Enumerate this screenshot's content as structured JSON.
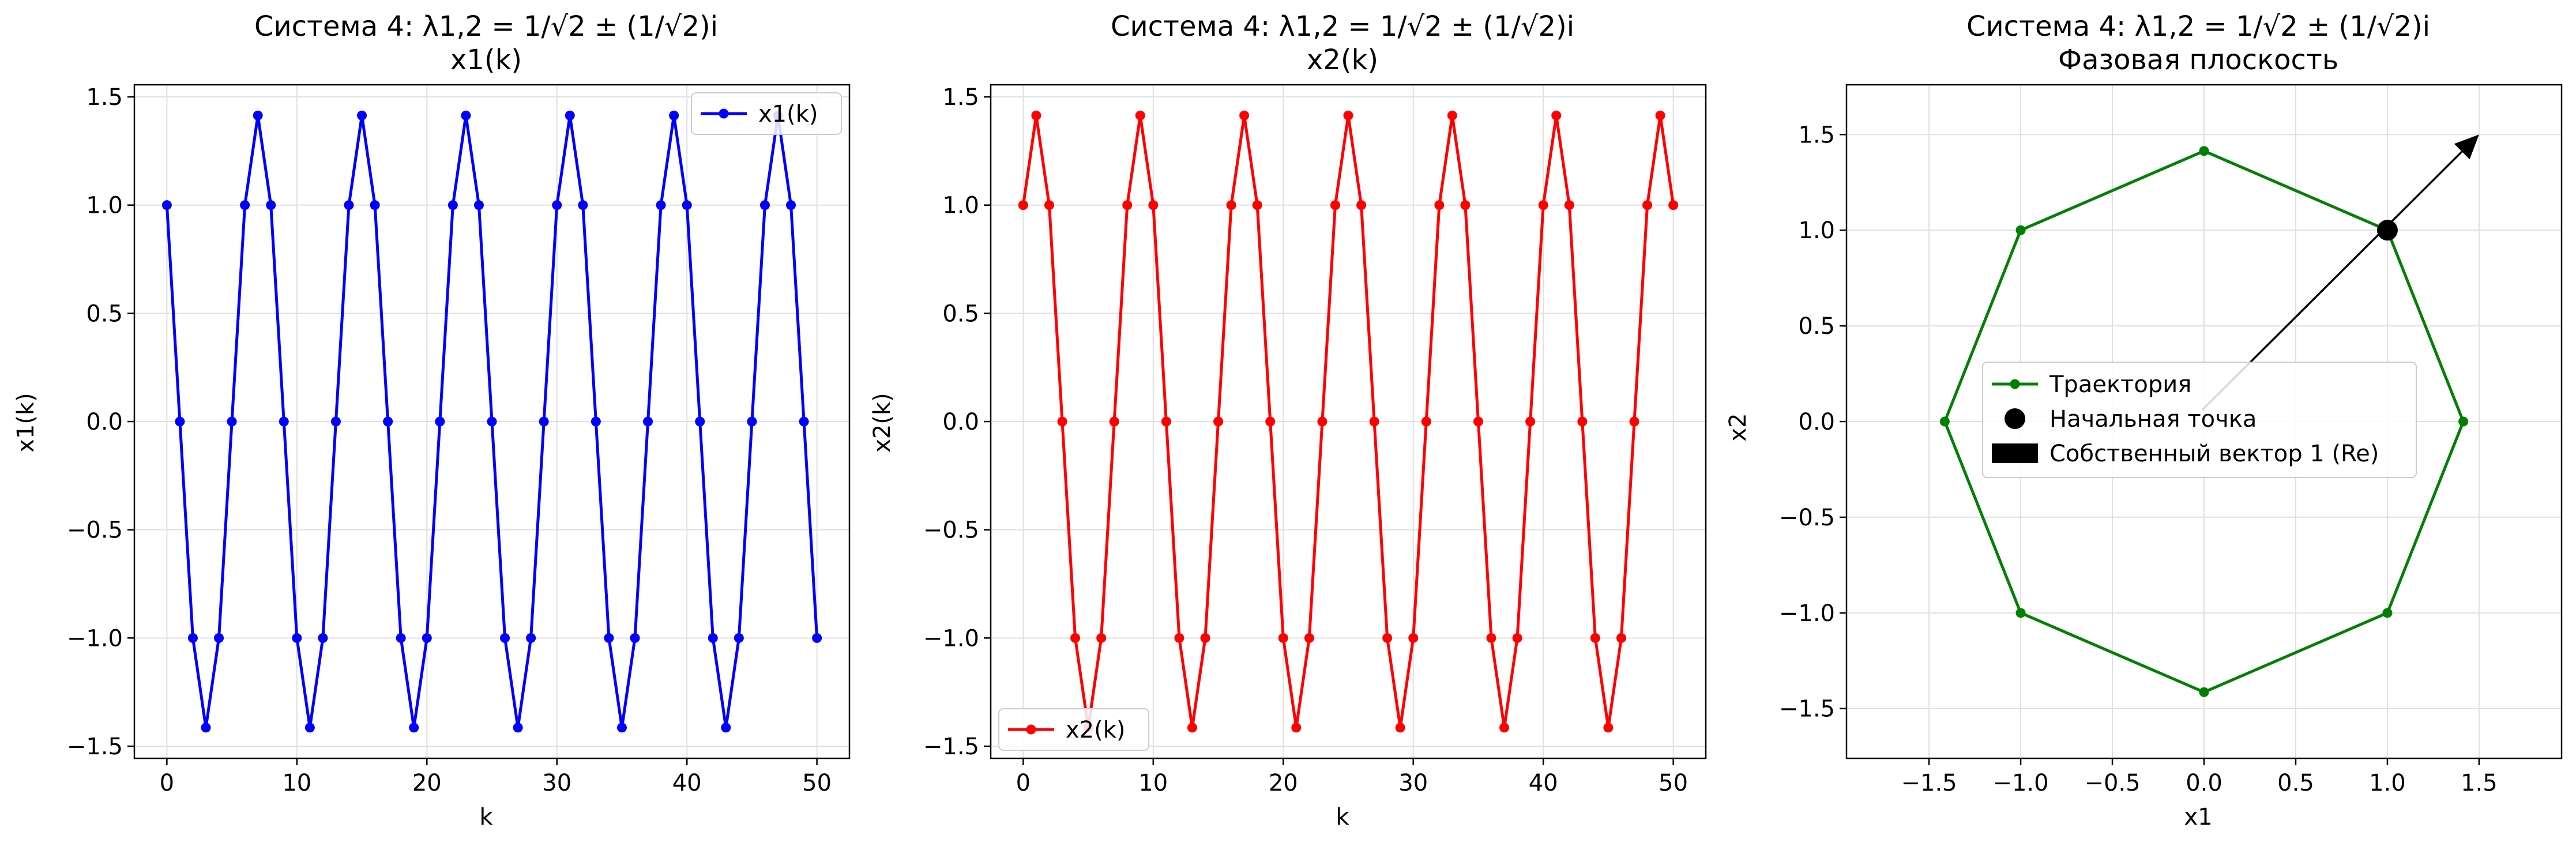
{
  "chart_data": [
    {
      "type": "line",
      "title": "Система 4: λ1,2 = 1/√2 ± (1/√2)i",
      "subtitle": "x1(k)",
      "xlabel": "k",
      "ylabel": "x1(k)",
      "xlim": [
        -2.5,
        52.5
      ],
      "ylim": [
        -1.556,
        1.556
      ],
      "xticks": [
        0,
        10,
        20,
        30,
        40,
        50
      ],
      "xtick_labels": [
        "0",
        "10",
        "20",
        "30",
        "40",
        "50"
      ],
      "yticks": [
        -1.5,
        -1.0,
        -0.5,
        0.0,
        0.5,
        1.0,
        1.5
      ],
      "ytick_labels": [
        "−1.5",
        "−1.0",
        "−0.5",
        "0.0",
        "0.5",
        "1.0",
        "1.5"
      ],
      "grid": true,
      "legend_position": "top-right",
      "series": [
        {
          "name": "x1(k)",
          "color": "#0000ff",
          "x": [
            0,
            1,
            2,
            3,
            4,
            5,
            6,
            7,
            8,
            9,
            10,
            11,
            12,
            13,
            14,
            15,
            16,
            17,
            18,
            19,
            20,
            21,
            22,
            23,
            24,
            25,
            26,
            27,
            28,
            29,
            30,
            31,
            32,
            33,
            34,
            35,
            36,
            37,
            38,
            39,
            40,
            41,
            42,
            43,
            44,
            45,
            46,
            47,
            48,
            49,
            50
          ],
          "y": [
            1,
            0,
            -1,
            -1.414,
            -1,
            0,
            1,
            1.414,
            1,
            0,
            -1,
            -1.414,
            -1,
            0,
            1,
            1.414,
            1,
            0,
            -1,
            -1.414,
            -1,
            0,
            1,
            1.414,
            1,
            0,
            -1,
            -1.414,
            -1,
            0,
            1,
            1.414,
            1,
            0,
            -1,
            -1.414,
            -1,
            0,
            1,
            1.414,
            1,
            0,
            -1,
            -1.414,
            -1,
            0,
            1,
            1.414,
            1,
            0,
            -1
          ]
        }
      ]
    },
    {
      "type": "line",
      "title": "Система 4: λ1,2 = 1/√2 ± (1/√2)i",
      "subtitle": "x2(k)",
      "xlabel": "k",
      "ylabel": "x2(k)",
      "xlim": [
        -2.5,
        52.5
      ],
      "ylim": [
        -1.556,
        1.556
      ],
      "xticks": [
        0,
        10,
        20,
        30,
        40,
        50
      ],
      "xtick_labels": [
        "0",
        "10",
        "20",
        "30",
        "40",
        "50"
      ],
      "yticks": [
        -1.5,
        -1.0,
        -0.5,
        0.0,
        0.5,
        1.0,
        1.5
      ],
      "ytick_labels": [
        "−1.5",
        "−1.0",
        "−0.5",
        "0.0",
        "0.5",
        "1.0",
        "1.5"
      ],
      "grid": true,
      "legend_position": "bottom-left",
      "series": [
        {
          "name": "x2(k)",
          "color": "#ff0000",
          "x": [
            0,
            1,
            2,
            3,
            4,
            5,
            6,
            7,
            8,
            9,
            10,
            11,
            12,
            13,
            14,
            15,
            16,
            17,
            18,
            19,
            20,
            21,
            22,
            23,
            24,
            25,
            26,
            27,
            28,
            29,
            30,
            31,
            32,
            33,
            34,
            35,
            36,
            37,
            38,
            39,
            40,
            41,
            42,
            43,
            44,
            45,
            46,
            47,
            48,
            49,
            50
          ],
          "y": [
            1,
            1.414,
            1,
            0,
            -1,
            -1.414,
            -1,
            0,
            1,
            1.414,
            1,
            0,
            -1,
            -1.414,
            -1,
            0,
            1,
            1.414,
            1,
            0,
            -1,
            -1.414,
            -1,
            0,
            1,
            1.414,
            1,
            0,
            -1,
            -1.414,
            -1,
            0,
            1,
            1.414,
            1,
            0,
            -1,
            -1.414,
            -1,
            0,
            1,
            1.414,
            1,
            0,
            -1,
            -1.414,
            -1,
            0,
            1,
            1.414,
            1
          ]
        }
      ]
    },
    {
      "type": "scatter",
      "title": "Система 4: λ1,2 = 1/√2 ± (1/√2)i",
      "subtitle": "Фазовая плоскость",
      "xlabel": "x1",
      "ylabel": "x2",
      "xlim": [
        -1.95,
        1.95
      ],
      "ylim": [
        -1.76,
        1.76
      ],
      "xticks": [
        -1.5,
        -1.0,
        -0.5,
        0.0,
        0.5,
        1.0,
        1.5
      ],
      "xtick_labels": [
        "−1.5",
        "−1.0",
        "−0.5",
        "0.0",
        "0.5",
        "1.0",
        "1.5"
      ],
      "yticks": [
        -1.5,
        -1.0,
        -0.5,
        0.0,
        0.5,
        1.0,
        1.5
      ],
      "ytick_labels": [
        "−1.5",
        "−1.0",
        "−0.5",
        "0.0",
        "0.5",
        "1.0",
        "1.5"
      ],
      "grid": true,
      "legend_position": "center",
      "series": [
        {
          "name": "Траектория",
          "color": "#008000",
          "x": [
            1,
            1.414,
            1,
            0,
            -1,
            -1.414,
            -1,
            0,
            1
          ],
          "y": [
            1,
            0,
            -1,
            -1.414,
            -1,
            0,
            1,
            1.414,
            1
          ]
        }
      ],
      "start_point": {
        "name": "Начальная точка",
        "x": 1,
        "y": 1,
        "color": "#000000"
      },
      "eigenvector": {
        "name": "Собственный вектор 1 (Re)",
        "x0": -0.01,
        "y0": 0.06,
        "x1": 1.5,
        "y1": 1.5,
        "color": "#000000"
      }
    }
  ]
}
